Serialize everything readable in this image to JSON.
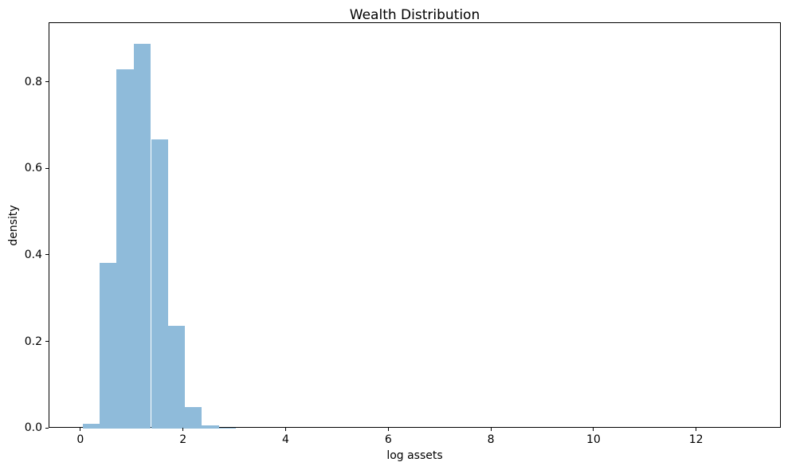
{
  "chart_data": {
    "type": "bar",
    "subtype": "histogram",
    "title": "Wealth Distribution",
    "xlabel": "log assets",
    "ylabel": "density",
    "xlim": [
      -0.62,
      13.65
    ],
    "ylim": [
      0,
      0.938
    ],
    "grid": false,
    "legend_position": "none",
    "bar_color": "#8FBBDA",
    "spine_color": "#000000",
    "x_ticks": [
      {
        "value": 0,
        "label": "0"
      },
      {
        "value": 2,
        "label": "2"
      },
      {
        "value": 4,
        "label": "4"
      },
      {
        "value": 6,
        "label": "6"
      },
      {
        "value": 8,
        "label": "8"
      },
      {
        "value": 10,
        "label": "10"
      },
      {
        "value": 12,
        "label": "12"
      }
    ],
    "y_ticks": [
      {
        "value": 0.0,
        "label": "0.0"
      },
      {
        "value": 0.2,
        "label": "0.2"
      },
      {
        "value": 0.4,
        "label": "0.4"
      },
      {
        "value": 0.6,
        "label": "0.6"
      },
      {
        "value": 0.8,
        "label": "0.8"
      }
    ],
    "bins": [
      {
        "x0": 0.03,
        "x1": 0.36,
        "density": 0.011
      },
      {
        "x0": 0.36,
        "x1": 0.69,
        "density": 0.383
      },
      {
        "x0": 0.69,
        "x1": 1.02,
        "density": 0.831
      },
      {
        "x0": 1.02,
        "x1": 1.36,
        "density": 0.89
      },
      {
        "x0": 1.36,
        "x1": 1.69,
        "density": 0.669
      },
      {
        "x0": 1.69,
        "x1": 2.02,
        "density": 0.238
      },
      {
        "x0": 2.02,
        "x1": 2.35,
        "density": 0.05
      },
      {
        "x0": 2.35,
        "x1": 2.68,
        "density": 0.008
      },
      {
        "x0": 2.68,
        "x1": 3.01,
        "density": 0.002
      }
    ]
  }
}
